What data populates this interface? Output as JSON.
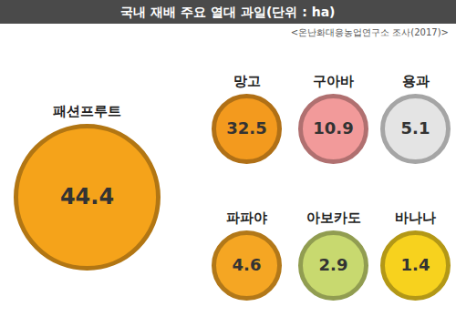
{
  "chart_data": {
    "type": "pictogram",
    "title": "국내 재배 주요 열대 과일(단위 : ha)",
    "subtitle": "<온난화대응농업연구소 조사(2017)>",
    "categories": [
      "패션프루트",
      "망고",
      "구아바",
      "용과",
      "파파야",
      "아보카도",
      "바나나"
    ],
    "values": [
      44.4,
      32.5,
      10.9,
      5.1,
      4.6,
      2.9,
      1.4
    ],
    "colors": [
      "#f5a31a",
      "#f39a1e",
      "#f29a9a",
      "#e4e4e4",
      "#f5a623",
      "#c8d96f",
      "#f7d21e"
    ],
    "data_labels": true,
    "tick_labels": false
  }
}
